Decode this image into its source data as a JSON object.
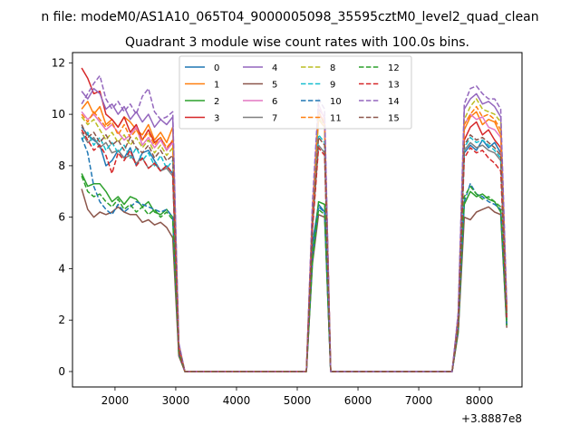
{
  "chart_data": {
    "type": "line",
    "suptitle": "n file: modeM0/AS1A10_065T04_9000005098_35595cztM0_level2_quad_clean",
    "title": "Quadrant 3 module wise count rates with 100.0s bins.",
    "xlabel": "",
    "ylabel": "",
    "x_offset_label": "+3.8887e8",
    "xlim": [
      1300,
      8700
    ],
    "ylim": [
      -0.6,
      12.4
    ],
    "xticks": [
      2000,
      3000,
      4000,
      5000,
      6000,
      7000,
      8000
    ],
    "yticks": [
      0,
      2,
      4,
      6,
      8,
      10,
      12
    ],
    "grid": false,
    "legend_position": "upper-center",
    "legend_columns": 4,
    "x": [
      1450,
      1550,
      1650,
      1750,
      1850,
      1950,
      2050,
      2150,
      2250,
      2350,
      2450,
      2550,
      2650,
      2750,
      2850,
      2950,
      3050,
      3150,
      3250,
      5150,
      5250,
      5350,
      5450,
      5550,
      5650,
      7550,
      7650,
      7750,
      7850,
      7950,
      8050,
      8150,
      8250,
      8350,
      8450
    ],
    "series": [
      {
        "name": "0",
        "style": "solid",
        "color": "#1f77b4",
        "values": [
          9.5,
          9.2,
          9.0,
          8.8,
          8.0,
          8.2,
          8.6,
          8.3,
          8.7,
          8.0,
          8.5,
          8.6,
          8.2,
          7.8,
          8.0,
          7.7,
          0.8,
          0.0,
          0.0,
          0.0,
          5.0,
          6.5,
          6.2,
          0.0,
          0.0,
          0.0,
          1.8,
          8.5,
          8.8,
          8.6,
          9.0,
          8.7,
          8.9,
          8.5,
          2.0
        ]
      },
      {
        "name": "1",
        "style": "solid",
        "color": "#ff7f0e",
        "values": [
          10.2,
          10.5,
          10.0,
          10.3,
          9.6,
          9.8,
          9.5,
          9.9,
          9.7,
          9.4,
          9.2,
          9.6,
          9.0,
          9.3,
          8.9,
          9.5,
          1.0,
          0.0,
          0.0,
          0.0,
          6.0,
          9.8,
          9.5,
          0.0,
          0.0,
          0.0,
          2.0,
          9.4,
          9.9,
          10.1,
          9.6,
          9.8,
          9.7,
          9.2,
          2.4
        ]
      },
      {
        "name": "2",
        "style": "solid",
        "color": "#2ca02c",
        "values": [
          7.7,
          7.2,
          7.3,
          7.3,
          7.0,
          6.6,
          6.8,
          6.5,
          6.8,
          6.7,
          6.4,
          6.6,
          6.2,
          6.1,
          6.3,
          6.0,
          0.7,
          0.0,
          0.0,
          0.0,
          4.5,
          6.6,
          6.5,
          0.0,
          0.0,
          0.0,
          1.6,
          6.5,
          7.0,
          6.8,
          6.9,
          6.7,
          6.6,
          6.2,
          1.8
        ]
      },
      {
        "name": "3",
        "style": "solid",
        "color": "#d62728",
        "values": [
          11.8,
          11.4,
          10.8,
          10.9,
          10.0,
          9.8,
          9.5,
          9.9,
          9.3,
          9.6,
          9.0,
          9.4,
          8.9,
          9.1,
          8.6,
          9.0,
          1.0,
          0.0,
          0.0,
          0.0,
          6.2,
          10.1,
          9.6,
          0.0,
          0.0,
          0.0,
          2.1,
          9.0,
          9.5,
          9.7,
          9.2,
          9.4,
          9.0,
          8.7,
          2.3
        ]
      },
      {
        "name": "4",
        "style": "solid",
        "color": "#9467bd",
        "values": [
          10.9,
          10.6,
          11.0,
          10.8,
          10.2,
          10.4,
          10.0,
          10.3,
          9.8,
          10.1,
          9.7,
          10.0,
          9.5,
          9.8,
          9.6,
          9.9,
          1.1,
          0.0,
          0.0,
          0.0,
          6.3,
          10.2,
          9.9,
          0.0,
          0.0,
          0.0,
          2.2,
          10.2,
          10.6,
          10.8,
          10.4,
          10.5,
          10.3,
          9.9,
          2.5
        ]
      },
      {
        "name": "5",
        "style": "solid",
        "color": "#8c564b",
        "values": [
          7.1,
          6.3,
          6.0,
          6.2,
          6.1,
          6.2,
          6.4,
          6.2,
          6.1,
          6.1,
          5.8,
          5.9,
          5.7,
          5.8,
          5.6,
          5.2,
          0.6,
          0.0,
          0.0,
          0.0,
          4.2,
          6.1,
          6.0,
          0.0,
          0.0,
          0.0,
          1.5,
          6.0,
          5.9,
          6.2,
          6.3,
          6.4,
          6.2,
          6.1,
          1.7
        ]
      },
      {
        "name": "6",
        "style": "solid",
        "color": "#e377c2",
        "values": [
          10.1,
          9.8,
          10.0,
          9.7,
          9.4,
          9.6,
          9.3,
          9.0,
          9.2,
          9.5,
          8.8,
          9.1,
          8.7,
          9.0,
          8.6,
          8.9,
          1.0,
          0.0,
          0.0,
          0.0,
          6.4,
          10.4,
          9.8,
          0.0,
          0.0,
          0.0,
          2.0,
          9.6,
          10.0,
          9.8,
          9.9,
          9.5,
          9.4,
          9.1,
          2.4
        ]
      },
      {
        "name": "7",
        "style": "solid",
        "color": "#7f7f7f",
        "values": [
          9.3,
          8.9,
          9.1,
          8.7,
          8.9,
          8.5,
          8.6,
          8.3,
          8.4,
          8.1,
          8.3,
          7.9,
          8.1,
          7.8,
          7.9,
          7.6,
          0.9,
          0.0,
          0.0,
          0.0,
          5.6,
          8.8,
          8.5,
          0.0,
          0.0,
          0.0,
          1.9,
          8.6,
          8.9,
          8.7,
          8.8,
          8.6,
          8.5,
          8.2,
          2.2
        ]
      },
      {
        "name": "8",
        "style": "dashed",
        "color": "#bcbd22",
        "values": [
          9.9,
          9.6,
          9.8,
          9.4,
          9.0,
          9.3,
          8.9,
          9.2,
          8.8,
          9.1,
          8.7,
          9.0,
          8.5,
          8.8,
          8.4,
          8.7,
          1.0,
          0.0,
          0.0,
          0.0,
          6.0,
          9.9,
          9.5,
          0.0,
          0.0,
          0.0,
          2.0,
          9.8,
          10.3,
          10.6,
          10.2,
          10.1,
          10.0,
          9.7,
          2.3
        ]
      },
      {
        "name": "9",
        "style": "dashed",
        "color": "#17becf",
        "values": [
          9.0,
          9.3,
          8.8,
          9.1,
          8.6,
          8.9,
          8.5,
          8.8,
          8.3,
          8.7,
          8.2,
          8.5,
          8.0,
          8.4,
          7.9,
          8.2,
          0.9,
          0.0,
          0.0,
          0.0,
          5.7,
          9.2,
          8.9,
          0.0,
          0.0,
          0.0,
          1.9,
          8.7,
          9.1,
          8.9,
          9.0,
          8.8,
          8.6,
          8.3,
          2.2
        ]
      },
      {
        "name": "10",
        "style": "dashed",
        "color": "#1f77b4",
        "values": [
          9.1,
          8.5,
          7.2,
          6.6,
          6.3,
          6.1,
          6.5,
          6.2,
          6.4,
          6.6,
          6.5,
          6.4,
          6.3,
          6.2,
          6.3,
          6.0,
          0.7,
          0.0,
          0.0,
          0.0,
          4.4,
          6.4,
          6.2,
          0.0,
          0.0,
          0.0,
          1.6,
          6.6,
          7.3,
          6.9,
          6.8,
          6.6,
          6.5,
          6.3,
          1.8
        ]
      },
      {
        "name": "11",
        "style": "dashed",
        "color": "#ff7f0e",
        "values": [
          10.0,
          9.7,
          10.1,
          9.8,
          9.5,
          9.7,
          9.2,
          9.6,
          9.1,
          9.4,
          9.0,
          9.3,
          8.8,
          9.1,
          8.7,
          9.0,
          1.0,
          0.0,
          0.0,
          0.0,
          6.1,
          10.1,
          9.7,
          0.0,
          0.0,
          0.0,
          2.1,
          9.6,
          10.0,
          10.3,
          9.9,
          10.0,
          9.8,
          9.4,
          2.4
        ]
      },
      {
        "name": "12",
        "style": "dashed",
        "color": "#2ca02c",
        "values": [
          7.6,
          7.0,
          6.8,
          6.9,
          6.6,
          6.4,
          6.7,
          6.3,
          6.5,
          6.2,
          6.4,
          6.1,
          6.3,
          6.0,
          6.2,
          5.9,
          0.7,
          0.0,
          0.0,
          0.0,
          4.3,
          6.3,
          6.1,
          0.0,
          0.0,
          0.0,
          1.6,
          6.8,
          7.2,
          6.9,
          6.7,
          6.8,
          6.6,
          6.4,
          1.8
        ]
      },
      {
        "name": "13",
        "style": "dashed",
        "color": "#d62728",
        "values": [
          9.4,
          9.0,
          8.6,
          8.8,
          8.4,
          7.7,
          8.5,
          8.2,
          8.6,
          8.0,
          8.3,
          7.9,
          8.1,
          7.8,
          8.0,
          7.7,
          0.8,
          0.0,
          0.0,
          0.0,
          5.5,
          8.7,
          8.4,
          0.0,
          0.0,
          0.0,
          1.8,
          8.3,
          8.7,
          8.5,
          8.6,
          8.3,
          8.1,
          7.8,
          2.1
        ]
      },
      {
        "name": "14",
        "style": "dashed",
        "color": "#9467bd",
        "values": [
          10.4,
          10.8,
          11.2,
          11.5,
          10.6,
          10.2,
          10.5,
          10.1,
          10.4,
          10.0,
          10.7,
          11.0,
          10.1,
          9.8,
          9.9,
          10.1,
          1.1,
          0.0,
          0.0,
          0.0,
          6.6,
          10.6,
          10.2,
          0.0,
          0.0,
          0.0,
          2.3,
          10.4,
          11.0,
          11.1,
          10.8,
          10.6,
          10.6,
          10.2,
          2.6
        ]
      },
      {
        "name": "15",
        "style": "dashed",
        "color": "#8c564b",
        "values": [
          9.6,
          9.1,
          9.3,
          8.9,
          9.2,
          8.8,
          9.0,
          8.6,
          9.1,
          8.7,
          8.5,
          8.8,
          8.3,
          8.6,
          8.2,
          8.4,
          0.9,
          0.0,
          0.0,
          0.0,
          5.8,
          9.1,
          8.8,
          0.0,
          0.0,
          0.0,
          1.9,
          8.8,
          9.2,
          9.0,
          9.1,
          8.9,
          8.7,
          8.4,
          2.2
        ]
      }
    ]
  }
}
